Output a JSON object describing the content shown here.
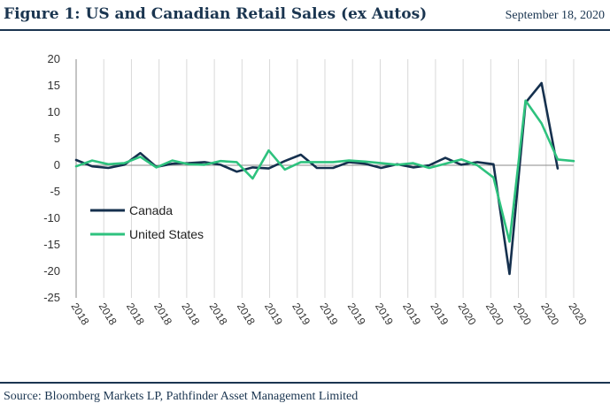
{
  "header": {
    "title": "Figure 1: US and Canadian Retail Sales (ex Autos)",
    "date": "September 18, 2020"
  },
  "footer": {
    "source": "Source: Bloomberg Markets LP, Pathfinder Asset Management Limited"
  },
  "chart_data": {
    "type": "line",
    "title": "",
    "xlabel": "",
    "ylabel": "",
    "ylim": [
      -25,
      20
    ],
    "yticks": [
      20,
      15,
      10,
      5,
      0,
      -5,
      -10,
      -15,
      -20,
      -25
    ],
    "x_tick_labels": [
      "2018",
      "2018",
      "2018",
      "2018",
      "2018",
      "2018",
      "2018",
      "2019",
      "2019",
      "2019",
      "2019",
      "2019",
      "2019",
      "2019",
      "2020",
      "2020",
      "2020",
      "2020",
      "2020"
    ],
    "grid": "vertical",
    "legend_position": "left-middle",
    "series": [
      {
        "name": "Canada",
        "color": "#15304e",
        "values": [
          1.0,
          -0.2,
          -0.5,
          0.1,
          2.3,
          -0.3,
          0.3,
          0.4,
          0.6,
          0.1,
          -1.2,
          -0.4,
          -0.6,
          0.8,
          2.0,
          -0.5,
          -0.5,
          0.6,
          0.3,
          -0.5,
          0.2,
          -0.4,
          0.0,
          1.4,
          0.1,
          0.6,
          0.2,
          -20.5,
          11.8,
          15.5,
          -0.6
        ]
      },
      {
        "name": "United States",
        "color": "#2ec27e",
        "values": [
          -0.2,
          0.9,
          0.2,
          0.4,
          1.6,
          -0.4,
          0.9,
          0.2,
          0.1,
          0.8,
          0.6,
          -2.5,
          2.8,
          -0.8,
          0.6,
          0.6,
          0.6,
          0.9,
          0.7,
          0.4,
          0.1,
          0.4,
          -0.5,
          0.3,
          1.1,
          0.0,
          -2.3,
          -14.4,
          12.2,
          7.9,
          1.1,
          0.8
        ]
      }
    ]
  }
}
